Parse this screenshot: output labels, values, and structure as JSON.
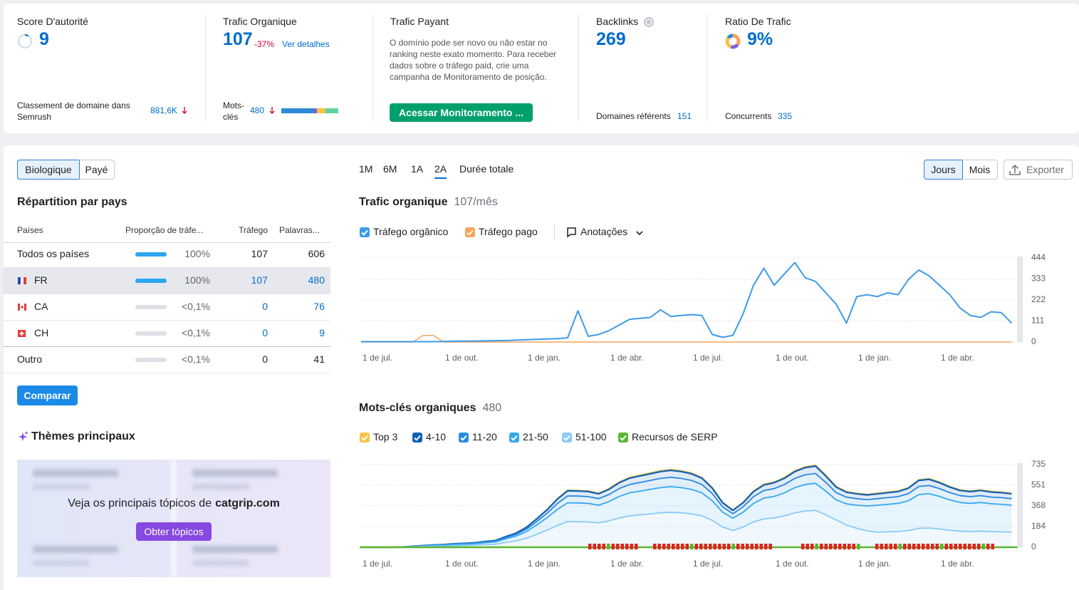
{
  "metrics": [
    {
      "title": "Score D'autorité",
      "value": 9,
      "footer_label": "Classement de domaine dans Semrush",
      "footer_value": "881,6K"
    },
    {
      "title": "Trafic Organique",
      "value": 107,
      "change": "-37%",
      "link": "Ver detalhes",
      "footer_label": "Mots-clés",
      "footer_value": 480
    },
    {
      "title": "Trafic Payant",
      "description": "O domínio pode ser novo ou não estar no ranking neste exato momento. Para receber dados sobre o tráfego paid, crie uma campanha de Monitoramento de posição.",
      "button": "Acessar Monitoramento ..."
    },
    {
      "title": "Backlinks",
      "value": 269,
      "footer_label": "Domaines référents",
      "footer_value": 151
    },
    {
      "title": "Ratio De Trafic",
      "value": "9%",
      "footer_label": "Concurrents",
      "footer_value": 335
    }
  ],
  "tabs": [
    "Biologique",
    "Payé"
  ],
  "countries": {
    "title": "Répartition par pays",
    "columns": [
      "Países",
      "Proporção de tráfe...",
      "Tráfego",
      "Palavras..."
    ],
    "rows": [
      {
        "name": "Todos os países",
        "share": "100%",
        "share_value": 100,
        "traffic": 107,
        "keywords": 606
      },
      {
        "name": "FR",
        "share": "100%",
        "share_value": 100,
        "traffic": 107,
        "keywords": 480
      },
      {
        "name": "CA",
        "share": "<0,1%",
        "share_value": 0.1,
        "traffic": 0,
        "keywords": 76
      },
      {
        "name": "CH",
        "share": "<0,1%",
        "share_value": 0.1,
        "traffic": 0,
        "keywords": 9
      },
      {
        "name": "Outro",
        "share": "<0,1%",
        "share_value": 0.1,
        "traffic": 0,
        "keywords": 41
      }
    ]
  },
  "compare_button": "Comparar",
  "topics": {
    "title": "Thèmes principaux",
    "prompt": "Veja os principais tópicos de",
    "domain": "catgrip.com",
    "button": "Obter tópicos"
  },
  "periods": [
    "1M",
    "6M",
    "1A",
    "2A",
    "Durée totale"
  ],
  "selected_period": "2A",
  "granularity": [
    "Jours",
    "Mois"
  ],
  "export": "Exporter",
  "chart_data": [
    {
      "type": "line",
      "title": "Trafic organique",
      "subtitle": "107/mês",
      "categories": [
        "1 de jul.",
        null,
        null,
        null,
        null,
        null,
        null,
        null,
        "1 de out.",
        null,
        null,
        null,
        null,
        null,
        null,
        null,
        "1 de jan.",
        null,
        null,
        null,
        null,
        null,
        null,
        null,
        "1 de abr.",
        null,
        null,
        null,
        null,
        null,
        null,
        null,
        "1 de jul.",
        null,
        null,
        null,
        null,
        null,
        null,
        null,
        "1 de out.",
        null,
        null,
        null,
        null,
        null,
        null,
        null,
        "1 de jan.",
        null,
        null,
        null,
        null,
        null,
        null,
        null,
        "1 de abr.",
        null,
        null,
        null,
        null,
        null,
        null,
        null
      ],
      "series": [
        {
          "name": "Tráfego orgânico",
          "color": "#3d9be9",
          "values": [
            2,
            2,
            2,
            2,
            2,
            2,
            2,
            2,
            3,
            4,
            5,
            5,
            6,
            7,
            8,
            10,
            12,
            14,
            16,
            18,
            22,
            165,
            30,
            40,
            60,
            90,
            120,
            125,
            130,
            170,
            135,
            140,
            145,
            140,
            40,
            25,
            35,
            150,
            300,
            390,
            300,
            360,
            420,
            340,
            320,
            260,
            200,
            100,
            240,
            250,
            240,
            260,
            250,
            330,
            380,
            350,
            300,
            250,
            180,
            140,
            130,
            160,
            155,
            100
          ]
        },
        {
          "name": "Tráfego pago",
          "color": "#f7a35c",
          "values": [
            0,
            0,
            0,
            0,
            0,
            0,
            35,
            35,
            0,
            0,
            0,
            0,
            0,
            0,
            0,
            0,
            0,
            0,
            0,
            0,
            0,
            0,
            0,
            0,
            0,
            0,
            0,
            0,
            0,
            0,
            0,
            0,
            0,
            0,
            0,
            0,
            0,
            0,
            0,
            0,
            0,
            0,
            0,
            0,
            0,
            0,
            0,
            0,
            0,
            0,
            0,
            0,
            0,
            0,
            0,
            0,
            0,
            0,
            0,
            0,
            0,
            0,
            0,
            0
          ]
        }
      ],
      "annotations_label": "Anotações",
      "ylim": [
        0,
        444
      ],
      "yticks": [
        0,
        111,
        222,
        333,
        444
      ],
      "grid": true
    },
    {
      "type": "area",
      "stacked": true,
      "title": "Mots-clés organiques",
      "subtitle": 480,
      "categories": [
        "1 de jul.",
        null,
        null,
        null,
        null,
        null,
        null,
        null,
        "1 de out.",
        null,
        null,
        null,
        null,
        null,
        null,
        null,
        "1 de jan.",
        null,
        null,
        null,
        null,
        null,
        null,
        null,
        "1 de abr.",
        null,
        null,
        null,
        null,
        null,
        null,
        null,
        "1 de jul.",
        null,
        null,
        null,
        null,
        null,
        null,
        null,
        "1 de out.",
        null,
        null,
        null,
        null,
        null,
        null,
        null,
        "1 de jan.",
        null,
        null,
        null,
        null,
        null,
        null,
        null,
        "1 de abr.",
        null,
        null,
        null,
        null,
        null,
        null,
        null
      ],
      "series": [
        {
          "name": "Top 3",
          "color": "#f6c343",
          "values": [
            0,
            0,
            0,
            0,
            0,
            0,
            0,
            0,
            0,
            0,
            0,
            0,
            1,
            1,
            1,
            1,
            2,
            3,
            3,
            4,
            5,
            5,
            5,
            5,
            5,
            6,
            6,
            6,
            7,
            7,
            7,
            7,
            7,
            6,
            5,
            4,
            3,
            4,
            5,
            6,
            6,
            6,
            7,
            7,
            7,
            6,
            5,
            5,
            5,
            5,
            5,
            5,
            5,
            5,
            6,
            6,
            6,
            5,
            5,
            5,
            5,
            5,
            5,
            5
          ]
        },
        {
          "name": "4-10",
          "color": "#1060b8",
          "values": [
            0,
            0,
            0,
            0,
            0,
            1,
            1,
            2,
            2,
            3,
            3,
            4,
            5,
            5,
            9,
            11,
            16,
            23,
            30,
            39,
            46,
            45,
            45,
            43,
            47,
            52,
            56,
            58,
            59,
            61,
            62,
            61,
            59,
            56,
            48,
            36,
            30,
            36,
            45,
            50,
            52,
            56,
            61,
            64,
            66,
            58,
            49,
            44,
            43,
            42,
            43,
            44,
            45,
            48,
            54,
            55,
            52,
            49,
            46,
            45,
            46,
            45,
            44,
            43
          ]
        },
        {
          "name": "11-20",
          "color": "#2889e0",
          "values": [
            0,
            0,
            0,
            0,
            0,
            1,
            2,
            2,
            3,
            4,
            4,
            5,
            6,
            7,
            11,
            15,
            21,
            30,
            40,
            52,
            61,
            61,
            60,
            58,
            62,
            70,
            74,
            77,
            79,
            82,
            83,
            82,
            79,
            74,
            64,
            48,
            40,
            48,
            60,
            67,
            70,
            74,
            82,
            86,
            87,
            77,
            65,
            59,
            58,
            56,
            58,
            59,
            60,
            64,
            72,
            73,
            70,
            65,
            61,
            60,
            61,
            59,
            59,
            58
          ]
        },
        {
          "name": "21-50",
          "color": "#36a8ee",
          "values": [
            0,
            0,
            0,
            0,
            1,
            3,
            5,
            7,
            8,
            10,
            12,
            13,
            17,
            20,
            31,
            42,
            59,
            84,
            111,
            142,
            167,
            167,
            165,
            158,
            172,
            191,
            205,
            211,
            218,
            224,
            228,
            224,
            218,
            205,
            175,
            132,
            109,
            132,
            165,
            185,
            191,
            205,
            224,
            236,
            241,
            211,
            178,
            188,
            206,
            221,
            240,
            245,
            250,
            265,
            300,
            305,
            290,
            270,
            255,
            250,
            255,
            248,
            245,
            240
          ]
        },
        {
          "name": "51-100",
          "color": "#8ccaf5",
          "values": [
            0,
            0,
            0,
            0,
            1,
            4,
            7,
            9,
            11,
            14,
            16,
            18,
            23,
            27,
            43,
            57,
            80,
            114,
            151,
            194,
            228,
            227,
            225,
            216,
            234,
            261,
            279,
            288,
            297,
            306,
            311,
            306,
            297,
            279,
            239,
            180,
            149,
            180,
            225,
            252,
            261,
            279,
            306,
            322,
            328,
            288,
            243,
            198,
            168,
            146,
            134,
            137,
            140,
            148,
            168,
            171,
            162,
            151,
            143,
            140,
            143,
            139,
            137,
            134
          ]
        }
      ],
      "serp_label": "Recursos de SERP",
      "serp_color": "#5cb531",
      "ylim": [
        0,
        735
      ],
      "yticks": [
        0,
        184,
        368,
        551,
        735
      ],
      "grid": true
    }
  ]
}
